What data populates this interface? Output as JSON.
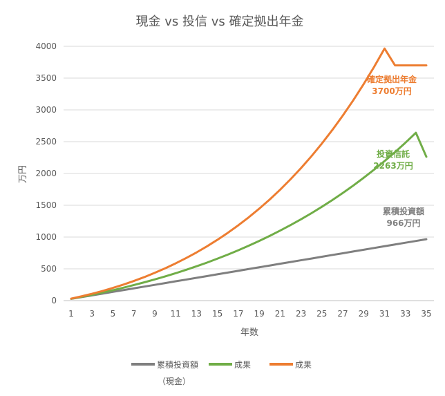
{
  "chart_data": {
    "type": "line",
    "title": "現金 vs 投信 vs 確定拠出年金",
    "xlabel": "年数",
    "ylabel": "万円",
    "xlim": [
      1,
      35
    ],
    "ylim": [
      0,
      4000
    ],
    "x_ticks": [
      "1",
      "3",
      "5",
      "7",
      "9",
      "11",
      "13",
      "15",
      "17",
      "19",
      "21",
      "23",
      "25",
      "27",
      "29",
      "31",
      "33",
      "35"
    ],
    "y_ticks": [
      "0",
      "500",
      "1000",
      "1500",
      "2000",
      "2500",
      "3000",
      "3500",
      "4000"
    ],
    "grid": "horizontal",
    "legend_position": "bottom",
    "x": [
      1,
      2,
      3,
      4,
      5,
      6,
      7,
      8,
      9,
      10,
      11,
      12,
      13,
      14,
      15,
      16,
      17,
      18,
      19,
      20,
      21,
      22,
      23,
      24,
      25,
      26,
      27,
      28,
      29,
      30,
      31,
      32,
      33,
      34,
      35
    ],
    "series": [
      {
        "name": "累積投資額（現金）",
        "legend_lines": [
          "累積投資額",
          "（現金）"
        ],
        "color": "#7f7f7f",
        "values": [
          28,
          55,
          83,
          110,
          138,
          166,
          193,
          221,
          248,
          276,
          304,
          331,
          359,
          386,
          414,
          442,
          469,
          497,
          524,
          552,
          580,
          607,
          635,
          662,
          690,
          718,
          745,
          773,
          800,
          828,
          856,
          883,
          911,
          938,
          966
        ]
      },
      {
        "name": "成果",
        "legend_lines": [
          "成果"
        ],
        "color": "#70ad47",
        "values": [
          29,
          60,
          92,
          128,
          164,
          203,
          245,
          288,
          333,
          381,
          431,
          484,
          540,
          598,
          660,
          724,
          792,
          864,
          939,
          1018,
          1101,
          1188,
          1279,
          1375,
          1476,
          1582,
          1693,
          1809,
          1932,
          2060,
          2195,
          2336,
          2484,
          2640,
          2263
        ]
      },
      {
        "name": "成果",
        "legend_lines": [
          "成果"
        ],
        "color": "#ed7d31",
        "values": [
          32,
          68,
          108,
          152,
          200,
          252,
          309,
          370,
          437,
          508,
          586,
          669,
          758,
          854,
          957,
          1067,
          1185,
          1311,
          1446,
          1590,
          1744,
          1909,
          2084,
          2271,
          2471,
          2684,
          2910,
          3150,
          3406,
          3677,
          3965,
          3700,
          3700,
          3700,
          3700
        ]
      }
    ],
    "annotations": [
      {
        "series_index": 2,
        "lines": [
          "確定拠出年金",
          "3700万円"
        ],
        "color": "#ed7d31"
      },
      {
        "series_index": 1,
        "lines": [
          "投資信託",
          "2263万円"
        ],
        "color": "#70ad47"
      },
      {
        "series_index": 0,
        "lines": [
          "累積投資額",
          "966万円"
        ],
        "color": "#7f7f7f"
      }
    ]
  }
}
